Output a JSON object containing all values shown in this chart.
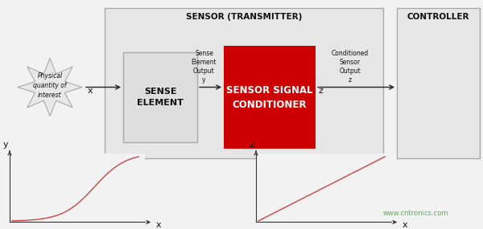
{
  "bg_color": "#f2f2f2",
  "title_sensor": "SENSOR (TRANSMITTER)",
  "title_controller": "CONTROLLER",
  "sense_element_label": "SENSE\nELEMENT",
  "conditioner_label": "SENSOR SIGNAL\nCONDITIONER",
  "sense_output_label": "Sense\nElement\nOutput\ny",
  "conditioned_label": "Conditioned\nSensor\nOutput\nz",
  "physical_label": "Physical\nquantity of\ninterest",
  "x_label": "x",
  "y_label": "y",
  "z_label": "z",
  "watermark": "www.cntronics.com",
  "watermark_color": "#44aa44",
  "arrow_color": "#222222",
  "curve1_color": "#cc4444",
  "curve2_color": "#cc4444",
  "sensor_box_fill": "#e6e6e6",
  "sensor_box_edge": "#aaaaaa",
  "controller_box_fill": "#e6e6e6",
  "controller_box_edge": "#aaaaaa",
  "sense_el_fill": "#dedede",
  "sense_el_edge": "#aaaaaa",
  "conditioner_fill": "#cc0000",
  "star_fill": "#e8e8e8",
  "star_edge": "#aaaaaa"
}
